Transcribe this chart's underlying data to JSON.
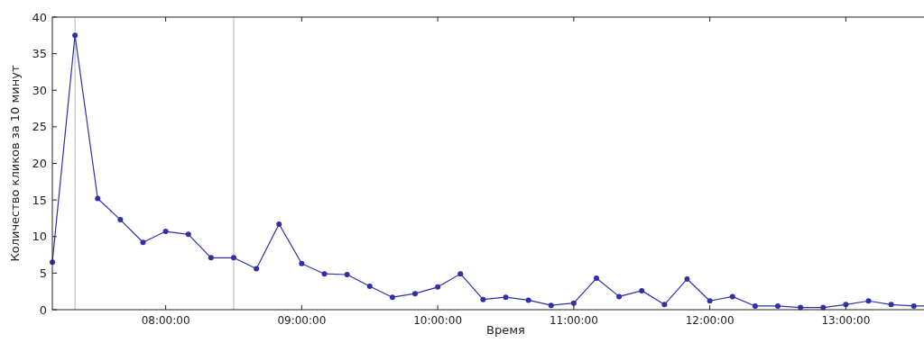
{
  "chart_data": {
    "type": "line",
    "xlabel": "Время",
    "ylabel": "Количество кликов за 10 минут",
    "x": [
      7.1667,
      7.3333,
      7.5,
      7.6667,
      7.8333,
      8,
      8.1667,
      8.3333,
      8.5,
      8.6667,
      8.8333,
      9,
      9.1667,
      9.3333,
      9.5,
      9.6667,
      9.8333,
      10,
      10.1667,
      10.3333,
      10.5,
      10.6667,
      10.8333,
      11,
      11.1667,
      11.3333,
      11.5,
      11.6667,
      11.8333,
      12,
      12.1667,
      12.3333,
      12.5,
      12.6667,
      12.8333,
      13,
      13.1667,
      13.3333,
      13.5,
      13.6667,
      13.8333
    ],
    "series": [
      {
        "color": "#3030a8",
        "values": [
          6.5,
          37.5,
          15.2,
          12.3,
          9.2,
          10.7,
          10.3,
          7.1,
          7.1,
          5.6,
          11.7,
          6.3,
          4.9,
          4.8,
          3.2,
          1.7,
          2.2,
          3.1,
          4.9,
          1.4,
          1.7,
          1.3,
          0.6,
          0.9,
          4.3,
          1.8,
          2.6,
          0.7,
          4.2,
          1.2,
          1.8,
          0.5,
          0.5,
          0.3,
          0.3,
          0.7,
          1.2,
          0.7,
          0.5,
          0.5,
          1.1
        ]
      }
    ],
    "xlim": [
      7.1667,
      13.8333
    ],
    "xticks": [
      {
        "value": 8,
        "label": "08:00:00"
      },
      {
        "value": 9,
        "label": "09:00:00"
      },
      {
        "value": 10,
        "label": "10:00:00"
      },
      {
        "value": 11,
        "label": "11:00:00"
      },
      {
        "value": 12,
        "label": "12:00:00"
      },
      {
        "value": 13,
        "label": "13:00:00"
      }
    ],
    "ylim": [
      0,
      40
    ],
    "yticks": [
      0,
      5,
      10,
      15,
      20,
      25,
      30,
      35,
      40
    ],
    "ref_lines": [
      {
        "axis": "x",
        "value": 7.3333,
        "color": "#c0c0c0"
      },
      {
        "axis": "x",
        "value": 8.5,
        "color": "#c0c0c0"
      }
    ],
    "marker": "circle",
    "line_style": "solid",
    "grid": false
  }
}
